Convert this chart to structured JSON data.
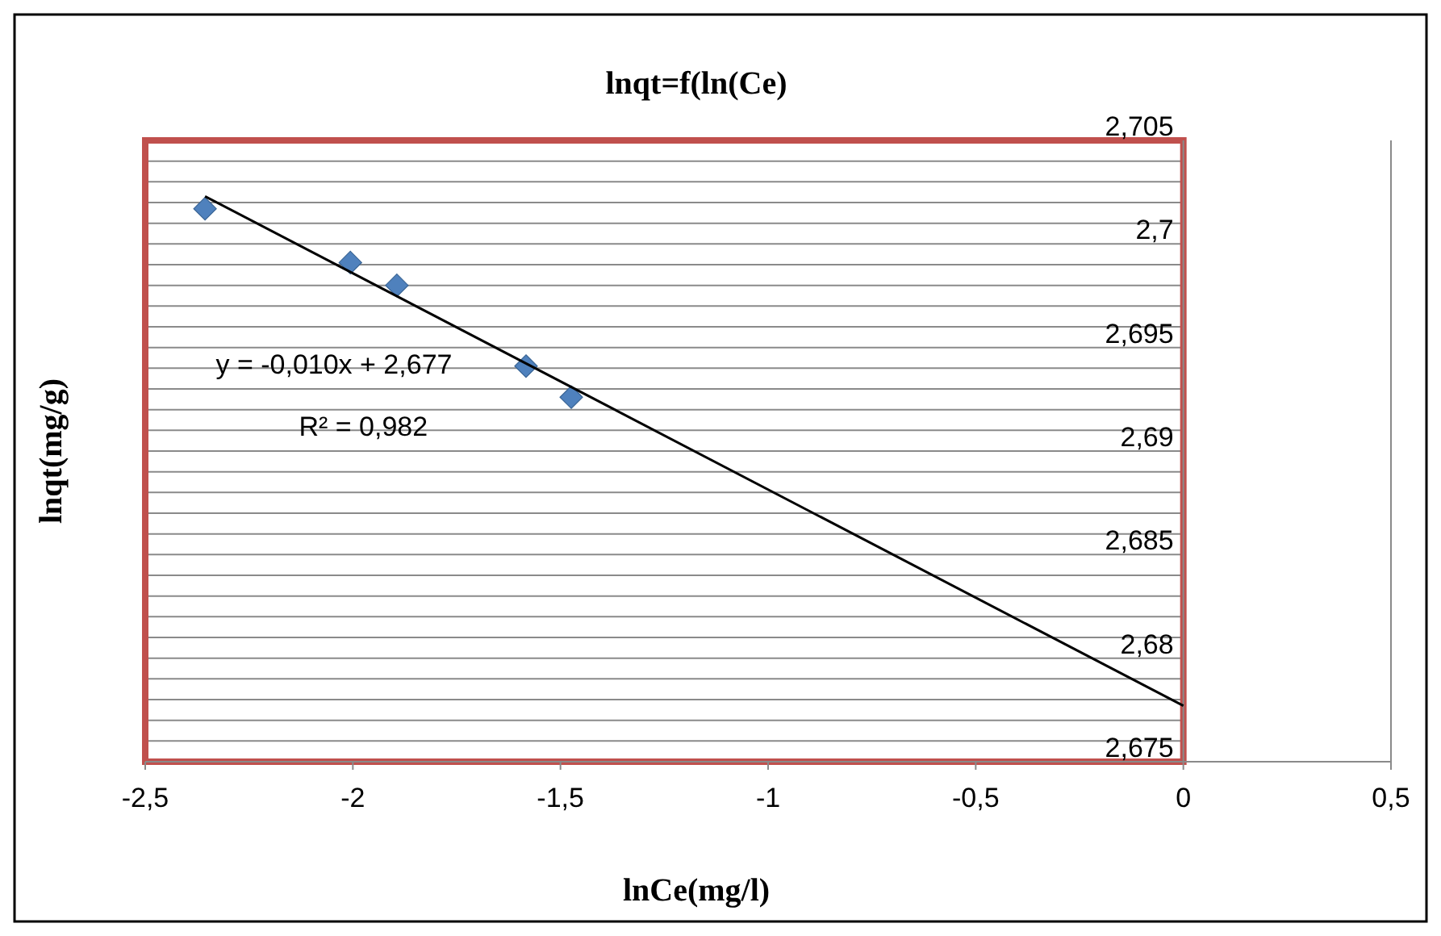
{
  "chart_data": {
    "type": "scatter",
    "title": "lnqt=f(ln(Ce)",
    "xlabel": "lnCe(mg/l)",
    "ylabel": "lnqt(mg/g)",
    "x": [
      -2.356,
      -2.006,
      -1.894,
      -1.583,
      -1.474
    ],
    "series": [
      {
        "type": "scatter",
        "color": "#4f81bd",
        "marker": "diamond",
        "values": [
          2.7017,
          2.6991,
          2.698,
          2.6941,
          2.6926
        ]
      },
      {
        "type": "line",
        "color": "#000000",
        "marker": "none",
        "x": [
          -2.356,
          0
        ],
        "values": [
          2.7023,
          2.6777
        ]
      }
    ],
    "xlim": [
      -2.5,
      0.5
    ],
    "xticks": [
      {
        "value": -2.5,
        "label": "-2,5"
      },
      {
        "value": -2,
        "label": "-2"
      },
      {
        "value": -1.5,
        "label": "-1,5"
      },
      {
        "value": -1,
        "label": "-1"
      },
      {
        "value": -0.5,
        "label": "-0,5"
      },
      {
        "value": 0,
        "label": "0"
      },
      {
        "value": 0.5,
        "label": "0,5"
      }
    ],
    "ylim": [
      2.675,
      2.705
    ],
    "yticks": [
      {
        "value": 2.675,
        "label": "2,675"
      },
      {
        "value": 2.676,
        "label": null
      },
      {
        "value": 2.677,
        "label": null
      },
      {
        "value": 2.678,
        "label": null
      },
      {
        "value": 2.679,
        "label": null
      },
      {
        "value": 2.68,
        "label": "2,68"
      },
      {
        "value": 2.681,
        "label": null
      },
      {
        "value": 2.682,
        "label": null
      },
      {
        "value": 2.683,
        "label": null
      },
      {
        "value": 2.684,
        "label": null
      },
      {
        "value": 2.685,
        "label": "2,685"
      },
      {
        "value": 2.686,
        "label": null
      },
      {
        "value": 2.687,
        "label": null
      },
      {
        "value": 2.688,
        "label": null
      },
      {
        "value": 2.689,
        "label": null
      },
      {
        "value": 2.69,
        "label": "2,69"
      },
      {
        "value": 2.691,
        "label": null
      },
      {
        "value": 2.692,
        "label": null
      },
      {
        "value": 2.693,
        "label": null
      },
      {
        "value": 2.694,
        "label": null
      },
      {
        "value": 2.695,
        "label": "2,695"
      },
      {
        "value": 2.696,
        "label": null
      },
      {
        "value": 2.697,
        "label": null
      },
      {
        "value": 2.698,
        "label": null
      },
      {
        "value": 2.699,
        "label": null
      },
      {
        "value": 2.7,
        "label": "2,7"
      },
      {
        "value": 2.701,
        "label": null
      },
      {
        "value": 2.702,
        "label": null
      },
      {
        "value": 2.703,
        "label": null
      },
      {
        "value": 2.704,
        "label": null
      },
      {
        "value": 2.705,
        "label": "2,705"
      }
    ],
    "grid": "y",
    "annotations": [
      "y = -0,010x + 2,677",
      "R² = 0,982"
    ]
  }
}
